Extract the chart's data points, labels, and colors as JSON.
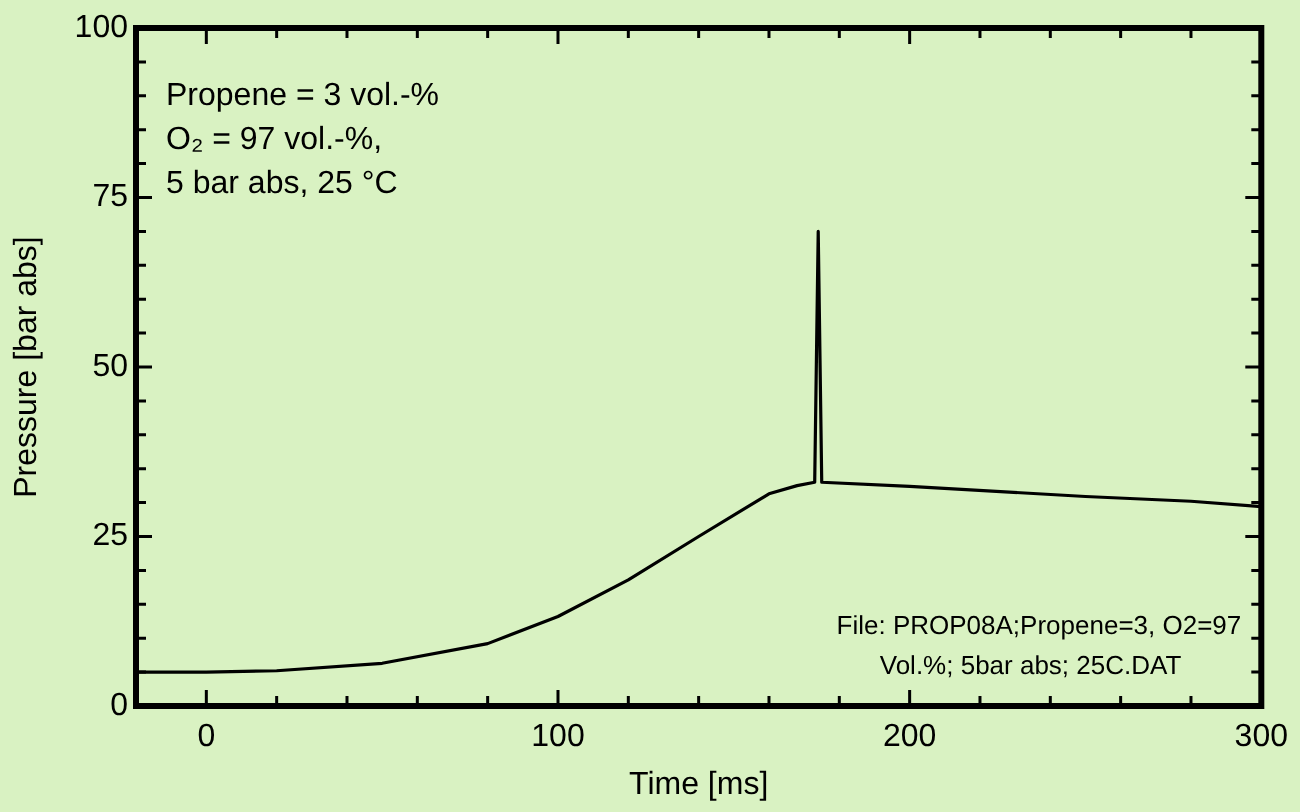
{
  "chart_data": {
    "type": "line",
    "xlabel": "Time [ms]",
    "ylabel": "Pressure [bar abs]",
    "annotations": [
      "Propene = 3 vol.-%\nO₂ = 97 vol.-%,\n5 bar abs, 25 °C",
      "File: PROP08A;Propene=3, O2=97\nVol.%; 5bar abs; 25C.DAT"
    ],
    "x": [
      -20,
      0,
      20,
      50,
      80,
      100,
      120,
      140,
      160,
      168,
      173,
      174,
      175,
      200,
      250,
      280,
      300
    ],
    "series": [
      {
        "color": "#000000",
        "values": [
          5.0,
          5.0,
          5.2,
          6.3,
          9.2,
          13.2,
          18.6,
          25.0,
          31.3,
          32.5,
          33.0,
          70,
          33.0,
          32.4,
          30.9,
          30.2,
          29.4
        ]
      }
    ],
    "xlim": [
      -20,
      300
    ],
    "xticks": [
      0,
      {
        "value": 20,
        "label": null
      },
      {
        "value": 40,
        "label": null
      },
      {
        "value": 60,
        "label": null
      },
      {
        "value": 80,
        "label": null
      },
      100,
      {
        "value": 120,
        "label": null
      },
      {
        "value": 140,
        "label": null
      },
      {
        "value": 160,
        "label": null
      },
      {
        "value": 180,
        "label": null
      },
      200,
      {
        "value": 220,
        "label": null
      },
      {
        "value": 240,
        "label": null
      },
      {
        "value": 260,
        "label": null
      },
      {
        "value": 280,
        "label": null
      },
      300
    ],
    "ylim": [
      0,
      100
    ],
    "yticks": [
      0,
      {
        "value": 5,
        "label": null
      },
      {
        "value": 10,
        "label": null
      },
      {
        "value": 15,
        "label": null
      },
      {
        "value": 20,
        "label": null
      },
      25,
      {
        "value": 30,
        "label": null
      },
      {
        "value": 35,
        "label": null
      },
      {
        "value": 40,
        "label": null
      },
      {
        "value": 45,
        "label": null
      },
      50,
      {
        "value": 55,
        "label": null
      },
      {
        "value": 60,
        "label": null
      },
      {
        "value": 65,
        "label": null
      },
      {
        "value": 70,
        "label": null
      },
      75,
      {
        "value": 80,
        "label": null
      },
      {
        "value": 85,
        "label": null
      },
      {
        "value": 90,
        "label": null
      },
      {
        "value": 95,
        "label": null
      },
      100
    ],
    "grid": false,
    "legend": false,
    "marker": "none",
    "line_style": "solid"
  }
}
